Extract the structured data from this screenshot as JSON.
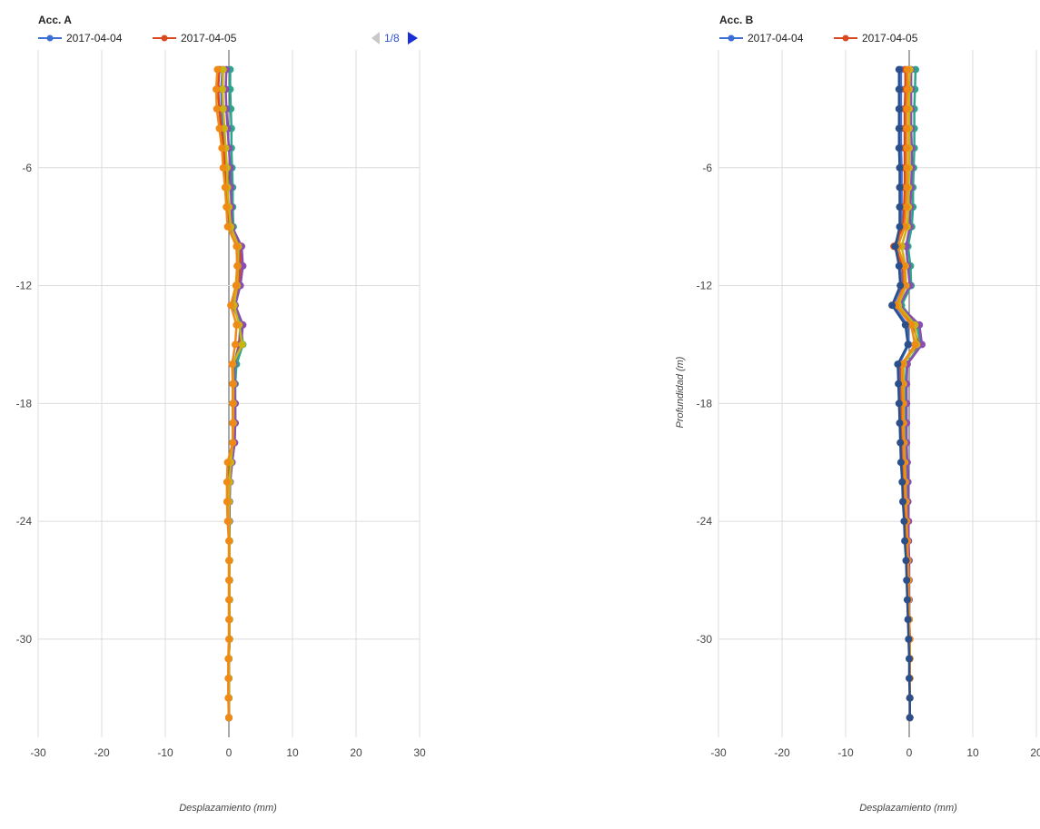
{
  "pager": {
    "label": "1/8"
  },
  "colors": {
    "grid": "#dcdcdc",
    "axis": "#555555",
    "pager_active": "#1a2fd6",
    "pager_inactive": "#c8c8c8"
  },
  "chart_data": [
    {
      "type": "line",
      "title": "Acc. A",
      "xlabel": "Desplazamiento (mm)",
      "ylabel": "",
      "xlim": [
        -30,
        30
      ],
      "ylim": [
        -35,
        0
      ],
      "xticks": [
        "-30",
        "-20",
        "-10",
        "0",
        "10",
        "20",
        "30"
      ],
      "yticks": [
        "-6",
        "-12",
        "-18",
        "-24",
        "-30"
      ],
      "y": [
        -1,
        -2,
        -3,
        -4,
        -5,
        -6,
        -7,
        -8,
        -9,
        -10,
        -11,
        -12,
        -13,
        -14,
        -15,
        -16,
        -17,
        -18,
        -19,
        -20,
        -21,
        -22,
        -23,
        -24,
        -25,
        -26,
        -27,
        -28,
        -29,
        -30,
        -31,
        -32,
        -33,
        -34
      ],
      "series": [
        {
          "name": "2017-04-04",
          "color": "#3b6fd6",
          "legend": true,
          "x": [
            -1,
            -1.2,
            -1.1,
            -0.9,
            -0.8,
            -0.6,
            -0.4,
            -0.3,
            0.1,
            1.8,
            1.6,
            1.5,
            0.6,
            1.8,
            1.6,
            0.8,
            0.8,
            0.8,
            0.8,
            0.7,
            0.3,
            0.1,
            0,
            0,
            0.1,
            0.1,
            0.1,
            0.1,
            0.1,
            0.1,
            0,
            0,
            0,
            0
          ]
        },
        {
          "name": "2017-04-05",
          "color": "#d9481f",
          "legend": true,
          "x": [
            -1.5,
            -1.7,
            -1.5,
            -1.2,
            -0.8,
            -0.6,
            -0.4,
            -0.2,
            0.3,
            1.9,
            1.8,
            1.6,
            0.7,
            1.9,
            1.7,
            0.9,
            0.9,
            0.9,
            0.9,
            0.8,
            0.4,
            0.1,
            0,
            0,
            0.1,
            0.1,
            0.1,
            0.1,
            0.1,
            0.1,
            0,
            0,
            0,
            0
          ]
        },
        {
          "name": "",
          "color": "#2ca58d",
          "legend": false,
          "x": [
            0.2,
            0.2,
            0.3,
            0.4,
            0.4,
            0.5,
            0.6,
            0.6,
            0.7,
            1.3,
            1.5,
            1.2,
            0.9,
            1.9,
            2.2,
            1.2,
            1.0,
            1.0,
            1.0,
            0.9,
            0.5,
            0.2,
            0.1,
            0.1,
            0.1,
            0.1,
            0.1,
            0.1,
            0.1,
            0.1,
            0,
            0,
            0,
            0
          ]
        },
        {
          "name": "",
          "color": "#8a4db0",
          "legend": false,
          "x": [
            -0.4,
            -0.5,
            -0.4,
            -0.2,
            0,
            0.2,
            0.3,
            0.4,
            0.5,
            2.0,
            2.2,
            1.8,
            1.0,
            2.2,
            1.9,
            0.8,
            0.9,
            1.0,
            1.0,
            0.9,
            0.5,
            0.2,
            0.1,
            0.1,
            0.1,
            0.1,
            0.1,
            0.1,
            0.1,
            0.1,
            0,
            0,
            0,
            0
          ]
        },
        {
          "name": "",
          "color": "#c9b415",
          "legend": false,
          "x": [
            -0.9,
            -1.0,
            -0.9,
            -0.7,
            -0.5,
            -0.3,
            -0.2,
            0,
            0.3,
            1.5,
            1.4,
            1.3,
            0.8,
            1.6,
            2.1,
            0.6,
            0.7,
            0.7,
            0.7,
            0.6,
            0.3,
            0.1,
            0,
            0,
            0.1,
            0.1,
            0.1,
            0.1,
            0.1,
            0.1,
            0,
            0,
            0,
            0
          ]
        },
        {
          "name": "",
          "color": "#ef8a17",
          "legend": false,
          "x": [
            -1.8,
            -2.0,
            -1.9,
            -1.5,
            -1.1,
            -0.9,
            -0.6,
            -0.4,
            -0.2,
            1.2,
            1.3,
            1.1,
            0.3,
            1.2,
            1.0,
            0.5,
            0.6,
            0.6,
            0.6,
            0.6,
            -0.2,
            -0.3,
            -0.3,
            -0.2,
            0,
            0,
            0,
            0,
            0,
            0,
            -0.1,
            -0.1,
            -0.1,
            0
          ]
        }
      ]
    },
    {
      "type": "line",
      "title": "Acc. B",
      "xlabel": "Desplazamiento (mm)",
      "ylabel": "Profundidad (m)",
      "xlim": [
        -30,
        30
      ],
      "ylim": [
        -35,
        0
      ],
      "xticks": [
        "-30",
        "-20",
        "-10",
        "0",
        "10",
        "20"
      ],
      "yticks": [
        "-6",
        "-12",
        "-18",
        "-24",
        "-30"
      ],
      "y": [
        -1,
        -2,
        -3,
        -4,
        -5,
        -6,
        -7,
        -8,
        -9,
        -10,
        -11,
        -12,
        -13,
        -14,
        -15,
        -16,
        -17,
        -18,
        -19,
        -20,
        -21,
        -22,
        -23,
        -24,
        -25,
        -26,
        -27,
        -28,
        -29,
        -30,
        -31,
        -32,
        -33,
        -34
      ],
      "series": [
        {
          "name": "2017-04-04",
          "color": "#3b6fd6",
          "legend": true,
          "x": [
            -1.3,
            -1.3,
            -1.3,
            -1.3,
            -1.3,
            -1.2,
            -1.2,
            -1.2,
            -1.3,
            -2.0,
            -1.4,
            -1.2,
            -2.5,
            -0.3,
            -0.1,
            -1.6,
            -1.5,
            -1.4,
            -1.3,
            -1.2,
            -1.1,
            -0.9,
            -0.8,
            -0.6,
            -0.5,
            -0.4,
            -0.3,
            -0.2,
            -0.1,
            0,
            0.1,
            0.1,
            0.1,
            0.1
          ]
        },
        {
          "name": "2017-04-05",
          "color": "#d9481f",
          "legend": true,
          "x": [
            -0.6,
            -0.6,
            -0.7,
            -0.7,
            -0.7,
            -0.7,
            -0.7,
            -0.8,
            -1.0,
            -2.4,
            -1.0,
            -0.9,
            -2.0,
            0.6,
            1.5,
            -1.3,
            -1.2,
            -1.2,
            -1.1,
            -1.0,
            -0.9,
            -0.8,
            -0.7,
            -0.5,
            -0.4,
            -0.3,
            -0.2,
            -0.1,
            0,
            0.1,
            0.1,
            0.1,
            0.1,
            0.1
          ]
        },
        {
          "name": "",
          "color": "#2ca58d",
          "legend": false,
          "x": [
            1.0,
            0.9,
            0.8,
            0.8,
            0.8,
            0.7,
            0.6,
            0.6,
            0.4,
            -0.2,
            0.2,
            0.3,
            -1.2,
            1.2,
            1.8,
            -0.4,
            -0.6,
            -0.6,
            -0.6,
            -0.6,
            -0.5,
            -0.4,
            -0.3,
            -0.2,
            -0.2,
            -0.1,
            -0.1,
            0,
            0,
            0,
            0.1,
            0.1,
            0.1,
            0.1
          ]
        },
        {
          "name": "",
          "color": "#8a4db0",
          "legend": false,
          "x": [
            0.3,
            0.3,
            0.3,
            0.3,
            0.4,
            0.4,
            0.3,
            0.2,
            0.1,
            -0.5,
            -0.2,
            0.1,
            -1.5,
            1.6,
            2.0,
            -0.3,
            -0.4,
            -0.4,
            -0.4,
            -0.4,
            -0.3,
            -0.2,
            -0.2,
            -0.1,
            -0.1,
            0,
            0,
            0,
            0,
            0.1,
            0.1,
            0.1,
            0.1,
            0.1
          ]
        },
        {
          "name": "",
          "color": "#c9b415",
          "legend": false,
          "x": [
            0.1,
            0,
            0,
            0,
            0,
            0,
            -0.1,
            -0.1,
            -0.3,
            -1.2,
            -0.6,
            -0.5,
            -1.7,
            0.9,
            1.2,
            -0.9,
            -0.9,
            -0.9,
            -0.9,
            -0.8,
            -0.7,
            -0.6,
            -0.5,
            -0.4,
            -0.3,
            -0.2,
            -0.1,
            -0.1,
            0,
            0,
            0.1,
            0.1,
            0.1,
            0.1
          ]
        },
        {
          "name": "",
          "color": "#ef8a17",
          "legend": false,
          "x": [
            -0.3,
            -0.3,
            -0.4,
            -0.4,
            -0.4,
            -0.4,
            -0.4,
            -0.5,
            -0.7,
            -1.8,
            -0.8,
            -0.7,
            -2.1,
            0.3,
            0.9,
            -1.1,
            -1.1,
            -1.0,
            -1.0,
            -0.9,
            -0.8,
            -0.7,
            -0.6,
            -0.4,
            -0.3,
            -0.2,
            -0.1,
            -0.1,
            0,
            0.1,
            0.1,
            0.1,
            0.1,
            0.1
          ]
        },
        {
          "name": "",
          "color": "#2b4f8a",
          "legend": false,
          "x": [
            -1.6,
            -1.6,
            -1.6,
            -1.6,
            -1.6,
            -1.5,
            -1.5,
            -1.5,
            -1.5,
            -2.2,
            -1.6,
            -1.4,
            -2.7,
            -0.6,
            -0.2,
            -1.8,
            -1.7,
            -1.6,
            -1.5,
            -1.4,
            -1.3,
            -1.1,
            -1.0,
            -0.8,
            -0.7,
            -0.5,
            -0.4,
            -0.3,
            -0.2,
            -0.1,
            0,
            0,
            0.1,
            0.1
          ]
        }
      ]
    }
  ]
}
